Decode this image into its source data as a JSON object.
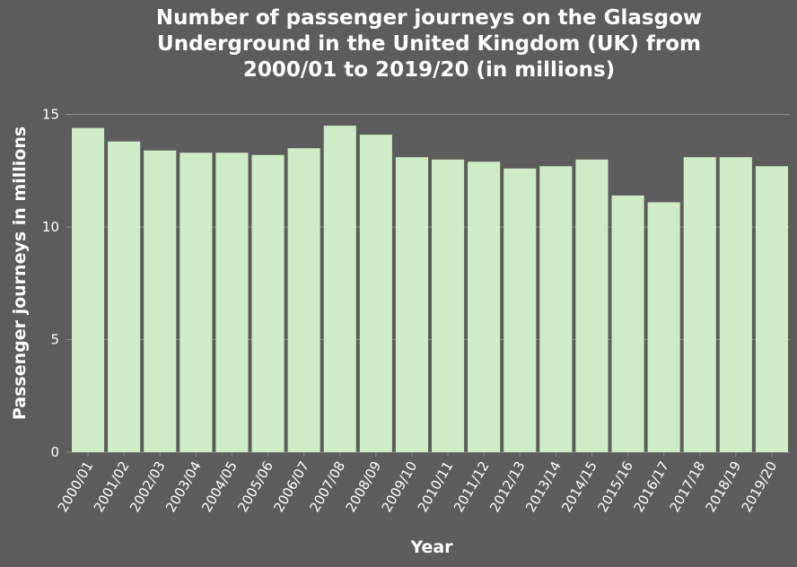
{
  "chart_data": {
    "type": "bar",
    "title_lines": [
      "Number of passenger journeys on the Glasgow",
      "Underground in the United Kingdom (UK) from",
      "2000/01 to 2019/20 (in millions)"
    ],
    "xlabel": "Year",
    "ylabel": "Passenger journeys in millions",
    "categories": [
      "2000/01",
      "2001/02",
      "2002/03",
      "2003/04",
      "2004/05",
      "2005/06",
      "2006/07",
      "2007/08",
      "2008/09",
      "2009/10",
      "2010/11",
      "2011/12",
      "2012/13",
      "2013/14",
      "2014/15",
      "2015/16",
      "2016/17",
      "2017/18",
      "2018/19",
      "2019/20"
    ],
    "values": [
      14.4,
      13.8,
      13.4,
      13.3,
      13.3,
      13.2,
      13.5,
      14.5,
      14.1,
      13.1,
      13.0,
      12.9,
      12.6,
      12.7,
      13.0,
      11.4,
      11.1,
      13.1,
      13.1,
      12.7
    ],
    "ylim": [
      0,
      15.9
    ],
    "yticks": [
      0,
      5,
      10,
      15
    ],
    "grid": true
  },
  "colors": {
    "background": "#5c5c5c",
    "plot_background": "#5c5c5c",
    "bar_fill": "#d0ecc6",
    "grid": "#8a8a8a",
    "text": "#ffffff"
  }
}
